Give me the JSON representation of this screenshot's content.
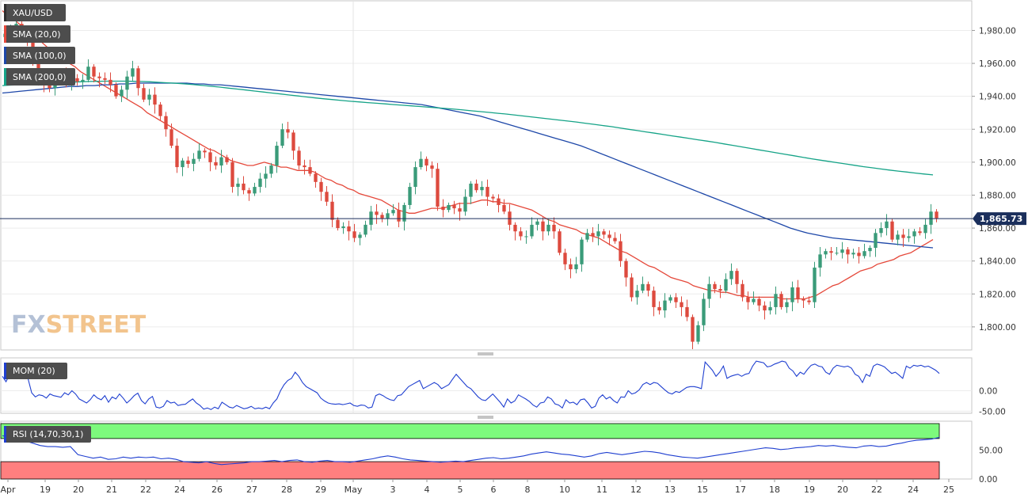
{
  "legend": {
    "symbol": "XAU/USD",
    "sma20": "SMA (20,0)",
    "sma100": "SMA (100,0)",
    "sma200": "SMA (200,0)",
    "mom": "MOM (20)",
    "rsi": "RSI (14,70,30,1)"
  },
  "watermark": {
    "fx": "FX",
    "street": "STREET"
  },
  "colors": {
    "up": "#3a9b79",
    "down": "#dd4a3e",
    "sma20": "#e5483a",
    "sma100": "#1d47a8",
    "sma200": "#15a387",
    "indicator": "#1f3fd0",
    "rsi_overbought": "#7dfa7d",
    "rsi_oversold": "#ff7f7f",
    "price_line": "#1b2f5c"
  },
  "x_labels": [
    "Apr",
    "19",
    "20",
    "21",
    "22",
    "24",
    "26",
    "27",
    "28",
    "29",
    "May",
    "3",
    "4",
    "5",
    "6",
    "8",
    "10",
    "11",
    "12",
    "13",
    "15",
    "17",
    "18",
    "19",
    "20",
    "22",
    "24",
    "25"
  ],
  "chart_data": [
    {
      "type": "candlestick",
      "panel": "price",
      "title": "XAU/USD",
      "current_price": 1865.73,
      "current_price_label": "1,865.73",
      "y_ticks": [
        "1,980.00",
        "1,960.00",
        "1,940.00",
        "1,920.00",
        "1,900.00",
        "1,880.00",
        "1,860.00",
        "1,840.00",
        "1,820.00",
        "1,800.00"
      ],
      "ylim": [
        1786,
        1998
      ],
      "closes": [
        1978,
        1981,
        1984,
        1979,
        1975,
        1960,
        1950,
        1948,
        1945,
        1951,
        1953,
        1949,
        1951,
        1949,
        1950,
        1958,
        1952,
        1951,
        1950,
        1947,
        1940,
        1944,
        1952,
        1957,
        1945,
        1938,
        1941,
        1935,
        1928,
        1920,
        1910,
        1897,
        1901,
        1899,
        1902,
        1907,
        1906,
        1900,
        1898,
        1903,
        1900,
        1885,
        1887,
        1883,
        1881,
        1885,
        1890,
        1893,
        1898,
        1910,
        1920,
        1918,
        1907,
        1898,
        1897,
        1893,
        1888,
        1882,
        1876,
        1865,
        1860,
        1861,
        1858,
        1854,
        1856,
        1862,
        1870,
        1868,
        1866,
        1869,
        1871,
        1864,
        1874,
        1885,
        1897,
        1902,
        1898,
        1896,
        1873,
        1871,
        1874,
        1872,
        1870,
        1879,
        1887,
        1883,
        1885,
        1879,
        1878,
        1874,
        1870,
        1862,
        1858,
        1855,
        1855,
        1862,
        1864,
        1858,
        1862,
        1858,
        1845,
        1838,
        1835,
        1838,
        1853,
        1857,
        1855,
        1858,
        1856,
        1854,
        1852,
        1840,
        1830,
        1818,
        1822,
        1826,
        1822,
        1812,
        1810,
        1816,
        1818,
        1815,
        1812,
        1806,
        1791,
        1801,
        1817,
        1826,
        1823,
        1822,
        1829,
        1834,
        1826,
        1818,
        1815,
        1817,
        1813,
        1810,
        1812,
        1820,
        1812,
        1815,
        1824,
        1817,
        1816,
        1815,
        1836,
        1844,
        1846,
        1845,
        1845,
        1847,
        1844,
        1845,
        1843,
        1846,
        1848,
        1857,
        1860,
        1864,
        1853,
        1856,
        1854,
        1855,
        1858,
        1857,
        1862,
        1870,
        1866
      ]
    },
    {
      "type": "line",
      "panel": "price-overlay",
      "series": [
        {
          "name": "SMA (20,0)",
          "values": [
            1992,
            1989,
            1987,
            1984,
            1981,
            1978,
            1975,
            1973,
            1970,
            1968,
            1966,
            1963,
            1960,
            1958,
            1955,
            1953,
            1951,
            1949,
            1947,
            1945,
            1943,
            1941,
            1939,
            1937,
            1935,
            1933,
            1930,
            1928,
            1926,
            1924,
            1922,
            1920,
            1918,
            1916,
            1914,
            1912,
            1910,
            1908,
            1907,
            1905,
            1903,
            1901,
            1900,
            1899,
            1898,
            1898,
            1899,
            1900,
            1899,
            1898,
            1897,
            1897,
            1896,
            1895,
            1895,
            1895,
            1894,
            1892,
            1890,
            1889,
            1887,
            1886,
            1884,
            1883,
            1881,
            1880,
            1879,
            1878,
            1877,
            1875,
            1873,
            1871,
            1870,
            1869,
            1869,
            1870,
            1871,
            1872,
            1872,
            1872,
            1873,
            1874,
            1875,
            1875,
            1875,
            1876,
            1877,
            1877,
            1876,
            1876,
            1875,
            1875,
            1874,
            1873,
            1872,
            1871,
            1869,
            1867,
            1865,
            1864,
            1862,
            1861,
            1860,
            1859,
            1857,
            1856,
            1855,
            1854,
            1852,
            1850,
            1848,
            1846,
            1845,
            1843,
            1841,
            1839,
            1837,
            1836,
            1834,
            1832,
            1830,
            1829,
            1828,
            1827,
            1825,
            1824,
            1823,
            1822,
            1822,
            1821,
            1821,
            1820,
            1819,
            1819,
            1818,
            1818,
            1818,
            1818,
            1818,
            1818,
            1817,
            1817,
            1817,
            1817,
            1817,
            1818,
            1819,
            1821,
            1823,
            1825,
            1826,
            1828,
            1830,
            1832,
            1834,
            1835,
            1836,
            1838,
            1839,
            1840,
            1841,
            1843,
            1844,
            1845,
            1847,
            1849,
            1851,
            1853
          ]
        },
        {
          "name": "SMA (100,0)",
          "values": [
            1942,
            1942.5,
            1943,
            1943.5,
            1944,
            1944.5,
            1945,
            1945.5,
            1946,
            1946,
            1946.5,
            1946.5,
            1947,
            1947,
            1947.5,
            1947.5,
            1948,
            1948,
            1948,
            1948,
            1948,
            1948,
            1948,
            1947.5,
            1947.5,
            1947,
            1947,
            1946.5,
            1946,
            1945.5,
            1945,
            1944.5,
            1944,
            1943.5,
            1943,
            1942.5,
            1942,
            1941.5,
            1941,
            1940.5,
            1940,
            1939.5,
            1939,
            1938.5,
            1938,
            1937.5,
            1937,
            1936.5,
            1936,
            1935.5,
            1935,
            1934,
            1933,
            1932,
            1931,
            1930,
            1929,
            1928,
            1926.5,
            1925,
            1923.5,
            1922,
            1920.5,
            1919,
            1917.5,
            1916,
            1914.5,
            1913,
            1911.5,
            1910,
            1908,
            1906,
            1904,
            1902,
            1900,
            1898,
            1896,
            1894,
            1892,
            1890,
            1888,
            1886,
            1884,
            1882,
            1880,
            1878,
            1876,
            1874,
            1872,
            1870,
            1868,
            1866,
            1864,
            1862,
            1860,
            1858.5,
            1857,
            1856,
            1855,
            1854,
            1853.5,
            1853,
            1852.5,
            1852,
            1851.5,
            1851,
            1850.5,
            1850,
            1849.5,
            1849,
            1848.5,
            1848
          ]
        },
        {
          "name": "SMA (200,0)",
          "values": [
            1946.5,
            1946.8,
            1947,
            1947.3,
            1947.6,
            1947.9,
            1948.2,
            1948.4,
            1948.6,
            1948.8,
            1949,
            1949.1,
            1949.2,
            1949.2,
            1949.2,
            1949.1,
            1949,
            1948.8,
            1948.5,
            1948.2,
            1947.9,
            1947.5,
            1947.1,
            1946.6,
            1946.1,
            1945.6,
            1945,
            1944.4,
            1943.8,
            1943.2,
            1942.6,
            1942,
            1941.4,
            1940.8,
            1940.2,
            1939.6,
            1939,
            1938.5,
            1938,
            1937.5,
            1937,
            1936.6,
            1936.2,
            1935.8,
            1935.4,
            1935,
            1934.6,
            1934.2,
            1933.8,
            1933.4,
            1933,
            1932.6,
            1932.2,
            1931.7,
            1931.2,
            1930.7,
            1930.2,
            1929.7,
            1929.2,
            1928.6,
            1928,
            1927.4,
            1926.8,
            1926.2,
            1925.6,
            1925,
            1924.4,
            1923.7,
            1923,
            1922.3,
            1921.6,
            1920.8,
            1920,
            1919.2,
            1918.4,
            1917.6,
            1916.8,
            1916,
            1915.2,
            1914.4,
            1913.6,
            1912.8,
            1912,
            1911.1,
            1910.2,
            1909.3,
            1908.4,
            1907.5,
            1906.6,
            1905.7,
            1904.8,
            1903.9,
            1903,
            1902.1,
            1901.3,
            1900.5,
            1899.7,
            1898.9,
            1898.1,
            1897.3,
            1896.6,
            1895.9,
            1895.2,
            1894.6,
            1894,
            1893.4,
            1892.8,
            1892.3
          ]
        }
      ]
    },
    {
      "type": "line",
      "panel": "mom",
      "series": [
        {
          "name": "MOM (20)",
          "values": [
            35,
            22,
            40,
            44,
            38,
            42,
            32,
            30,
            -5,
            -15,
            -10,
            -12,
            -18,
            -8,
            -12,
            -14,
            -16,
            -5,
            -10,
            0,
            -8,
            -20,
            -25,
            -30,
            -22,
            -10,
            -18,
            -22,
            -12,
            -28,
            -15,
            -20,
            -8,
            -18,
            -30,
            -22,
            -12,
            -6,
            -24,
            -32,
            -20,
            -14,
            -40,
            -42,
            -38,
            -24,
            -30,
            -28,
            -36,
            -34,
            -33,
            -26,
            -20,
            -30,
            -36,
            -45,
            -42,
            -46,
            -40,
            -44,
            -28,
            -34,
            -40,
            -42,
            -36,
            -40,
            -44,
            -42,
            -38,
            -44,
            -42,
            -44,
            -40,
            -44,
            -30,
            -20,
            0,
            15,
            25,
            30,
            45,
            35,
            20,
            10,
            5,
            0,
            -5,
            -18,
            -25,
            -30,
            -32,
            -33,
            -32,
            -34,
            -32,
            -30,
            -36,
            -38,
            -35,
            -36,
            -42,
            -40,
            -12,
            -8,
            -12,
            -18,
            -22,
            -24,
            -12,
            -10,
            0,
            10,
            15,
            20,
            25,
            5,
            10,
            15,
            20,
            15,
            5,
            10,
            15,
            28,
            40,
            30,
            20,
            10,
            5,
            -5,
            -15,
            -22,
            -24,
            -16,
            -8,
            -18,
            -28,
            -40,
            -20,
            -30,
            -25,
            -10,
            -15,
            -20,
            -26,
            -35,
            -40,
            -30,
            -28,
            -15,
            -20,
            -32,
            -35,
            -42,
            -22,
            -30,
            -28,
            -34,
            -22,
            -20,
            -30,
            -42,
            -38,
            -18,
            -10,
            -20,
            -15,
            -24,
            -30,
            -15,
            -16,
            0,
            -8,
            -5,
            2,
            15,
            20,
            15,
            20,
            18,
            10,
            2,
            -5,
            -8,
            -2,
            -4,
            2,
            8,
            10,
            10,
            8,
            5,
            70,
            60,
            50,
            35,
            45,
            60,
            30,
            35,
            38,
            40,
            35,
            40,
            42,
            60,
            72,
            70,
            68,
            58,
            60,
            65,
            68,
            72,
            70,
            55,
            48,
            35,
            45,
            40,
            52,
            62,
            65,
            60,
            58,
            45,
            40,
            55,
            62,
            60,
            58,
            60,
            55,
            40,
            35,
            20,
            40,
            35,
            60,
            65,
            62,
            58,
            50,
            42,
            45,
            38,
            30,
            60,
            55,
            62,
            60,
            62,
            58,
            60,
            55,
            50,
            42
          ]
        }
      ],
      "y_ticks": [
        "0.00",
        "-50.00"
      ],
      "ylim": [
        -55,
        80
      ]
    },
    {
      "type": "line",
      "panel": "rsi",
      "series": [
        {
          "name": "RSI (14,70,30,1)",
          "values": [
            75,
            72,
            68,
            66,
            62,
            58,
            56,
            56,
            55,
            56,
            42,
            39,
            36,
            38,
            34,
            35,
            38,
            36,
            38,
            37,
            38,
            35,
            36,
            34,
            30,
            29,
            28,
            30,
            27,
            25,
            26,
            27,
            28,
            30,
            30,
            31,
            32,
            30,
            32,
            33,
            30,
            29,
            31,
            32,
            30,
            30,
            29,
            31,
            33,
            35,
            38,
            40,
            38,
            35,
            33,
            32,
            31,
            30,
            29,
            30,
            31,
            30,
            32,
            34,
            36,
            37,
            35,
            36,
            38,
            40,
            43,
            45,
            47,
            45,
            43,
            42,
            40,
            38,
            40,
            44,
            46,
            44,
            42,
            44,
            46,
            48,
            47,
            45,
            42,
            40,
            38,
            37,
            36,
            38,
            40,
            42,
            44,
            46,
            48,
            50,
            52,
            54,
            53,
            51,
            52,
            54,
            55,
            56,
            58,
            57,
            58,
            56,
            55,
            54,
            57,
            58,
            56,
            57,
            60,
            62,
            65,
            67,
            68,
            69,
            72
          ]
        }
      ],
      "y_ticks": [
        "50.00",
        "0.00"
      ],
      "ylim": [
        0,
        100
      ],
      "overbought": 70,
      "oversold": 30
    }
  ]
}
